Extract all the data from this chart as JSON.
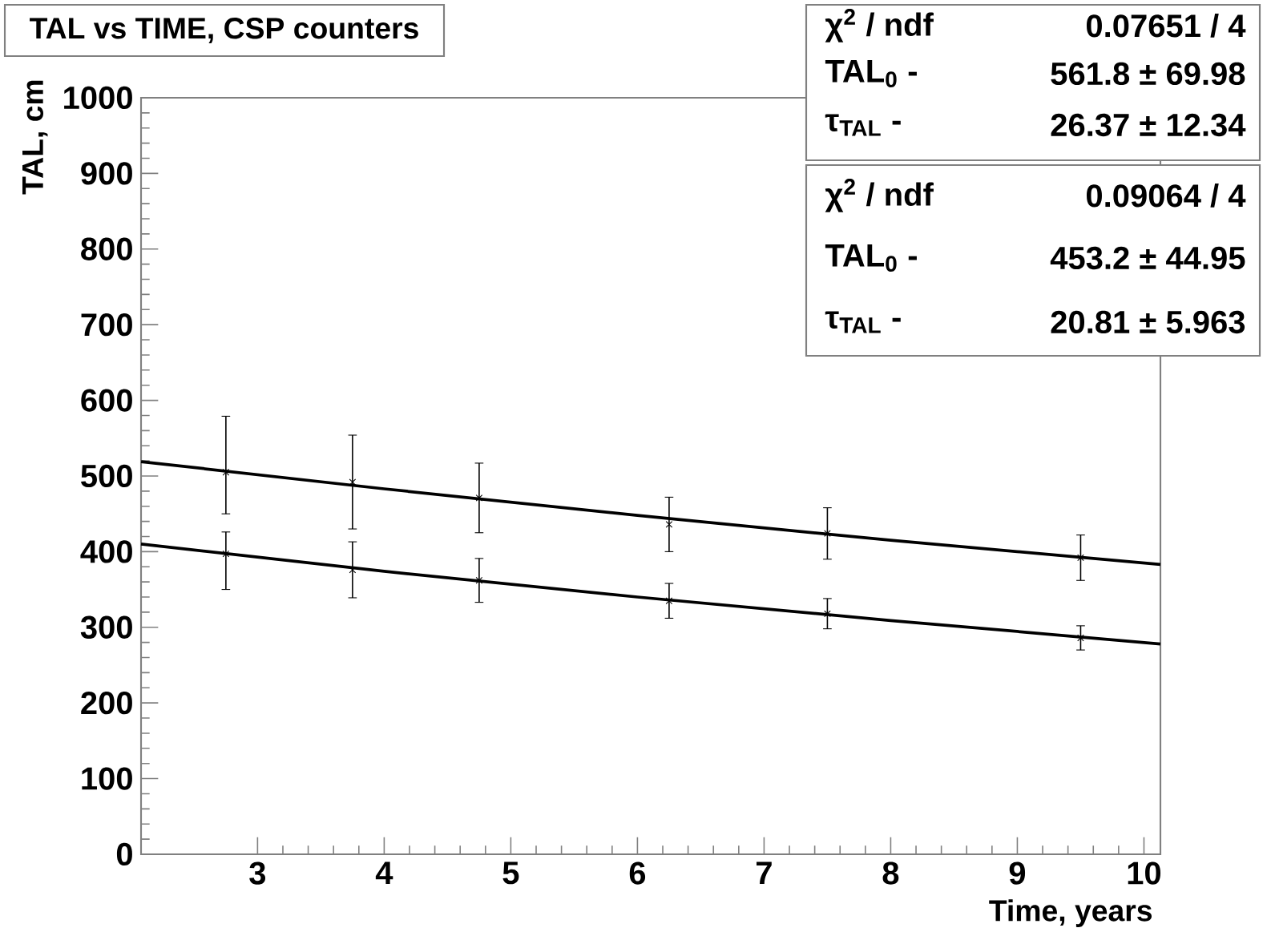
{
  "chart_data": {
    "type": "scatter",
    "title": "TAL vs TIME, CSP counters",
    "xlabel": "Time, years",
    "ylabel": "TAL, cm",
    "xlim": [
      2.08,
      10.13
    ],
    "ylim": [
      0,
      1000
    ],
    "xticks": [
      3,
      4,
      5,
      6,
      7,
      8,
      9,
      10
    ],
    "yticks": [
      0,
      100,
      200,
      300,
      400,
      500,
      600,
      700,
      800,
      900,
      1000
    ],
    "marker": "cross",
    "series": [
      {
        "color": "#000000",
        "x": [
          2.75,
          3.75,
          4.75,
          6.25,
          7.5,
          9.5
        ],
        "values": [
          505,
          492,
          471,
          436,
          424,
          392
        ],
        "errors": [
          [
            450,
            579
          ],
          62,
          46,
          36,
          34,
          30
        ]
      },
      {
        "color": "#000000",
        "x": [
          2.75,
          3.75,
          4.75,
          6.25,
          7.5,
          9.5
        ],
        "values": [
          397,
          376,
          362,
          335,
          318,
          286
        ],
        "errors": [
          [
            350,
            426
          ],
          37,
          29,
          23,
          20,
          16
        ]
      },
      {
        "type": "line",
        "color": "#000000",
        "marker": "none",
        "x": [
          2.08,
          4,
          6,
          8,
          10.13
        ],
        "values": [
          519,
          483,
          448,
          415,
          383
        ]
      },
      {
        "type": "line",
        "color": "#000000",
        "marker": "none",
        "x": [
          2.08,
          4,
          6,
          8,
          10.13
        ],
        "values": [
          410,
          374,
          340,
          309,
          278
        ]
      }
    ],
    "annotations": [
      "χ$^{2}$ / ndf",
      "0.07651 / 4",
      "TAL$_{0}$ -",
      "561.8 ± 69.98",
      "τ$_{TAL}$ -",
      "26.37 ± 12.34",
      "χ$^{2}$ / ndf",
      "0.09064 / 4",
      "TAL$_{0}$ -",
      "453.2 ± 44.95",
      "τ$_{TAL}$ -",
      "20.81 ± 5.963"
    ]
  }
}
